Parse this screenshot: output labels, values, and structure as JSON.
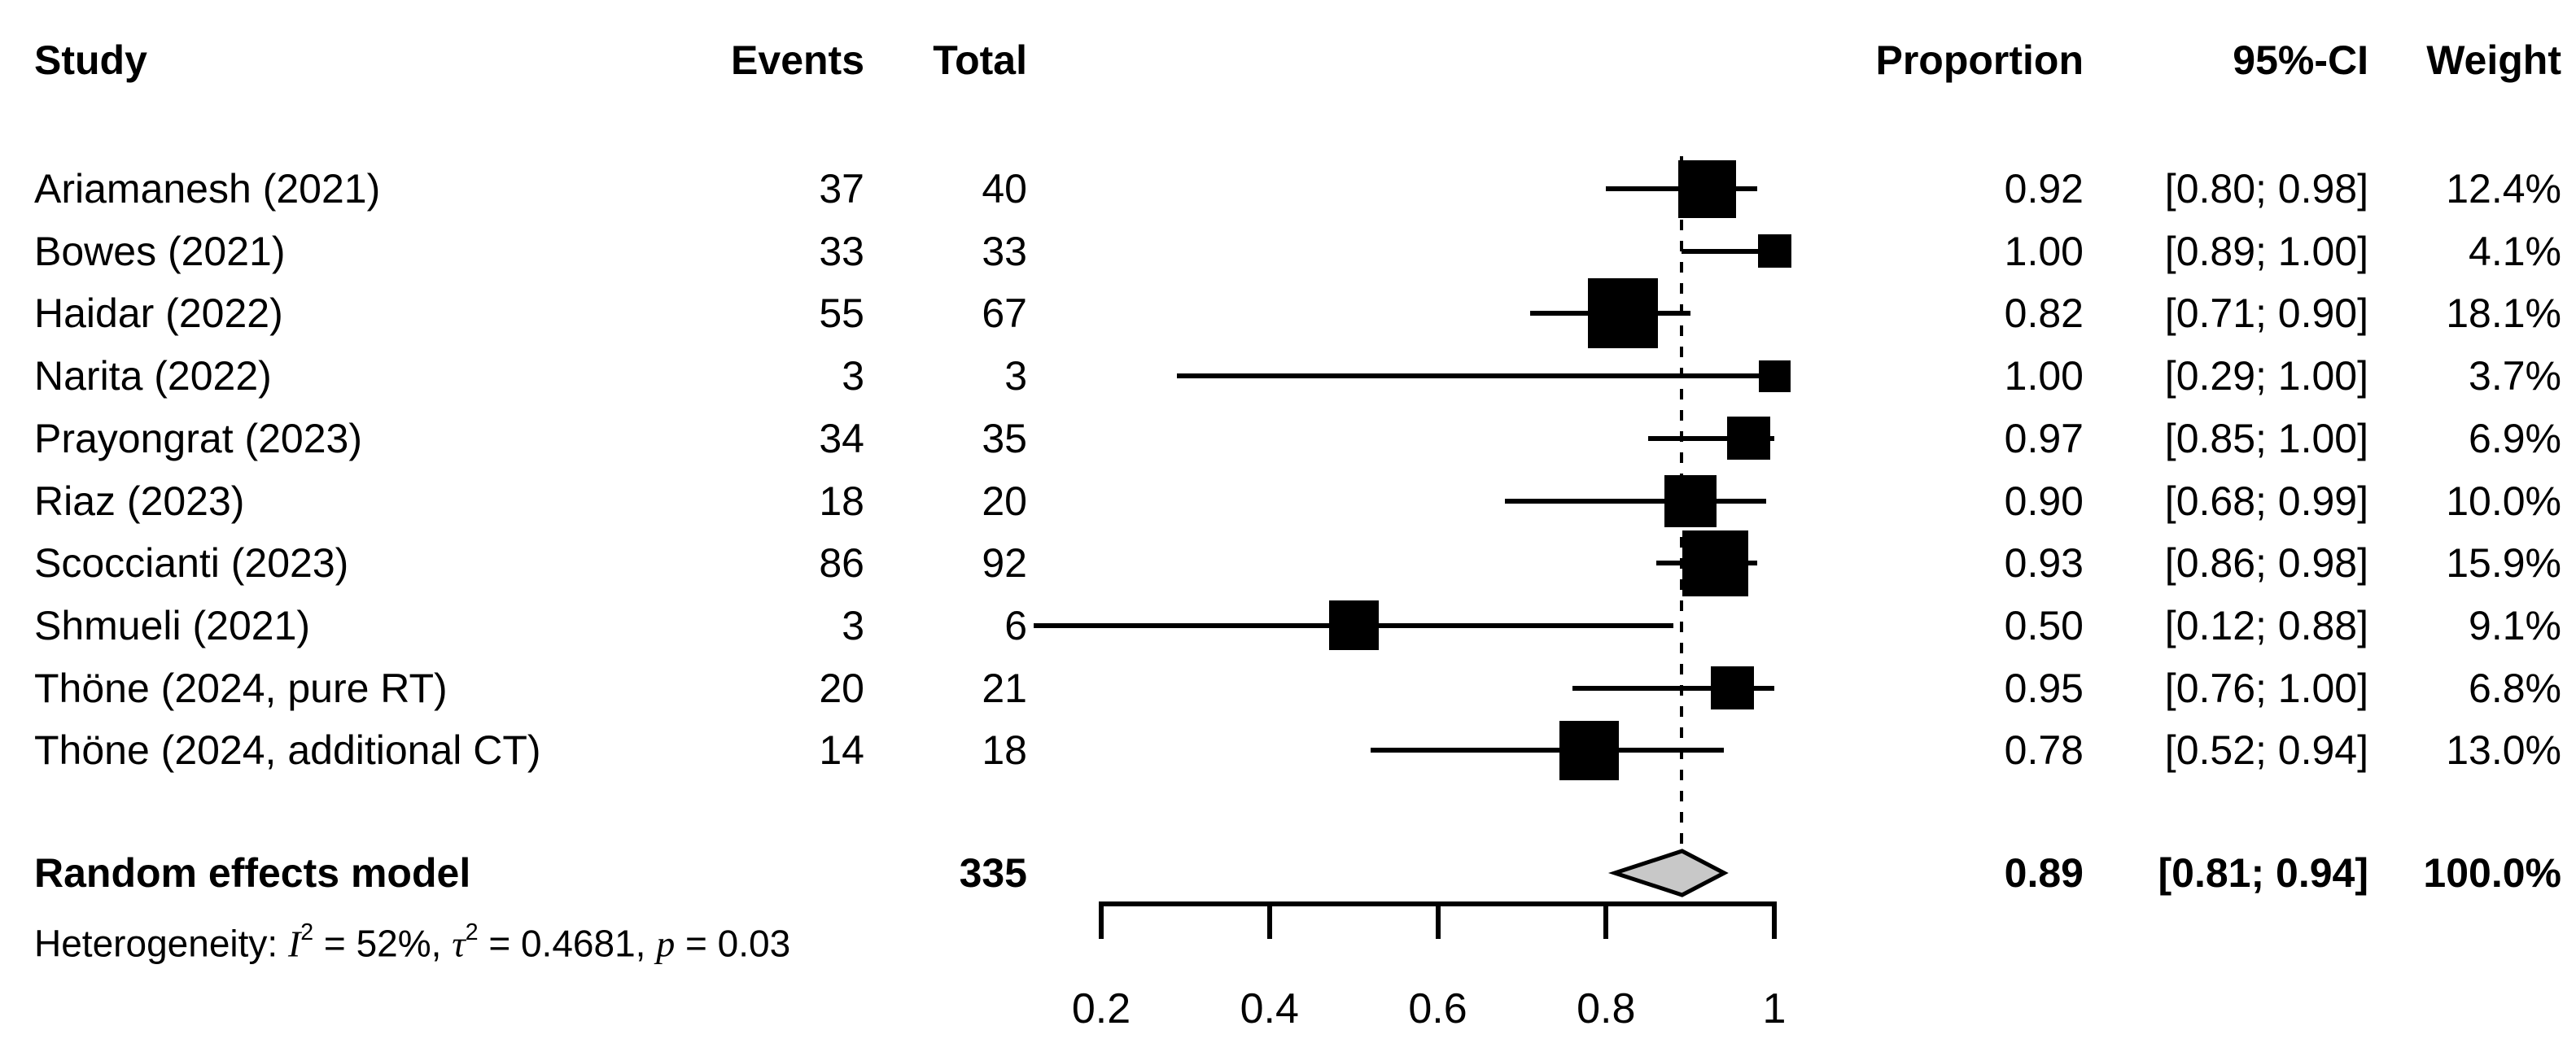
{
  "colors": {
    "text": "#000000",
    "marker": "#000000",
    "diamond_fill": "#c8c8c8",
    "diamond_border": "#000000",
    "background": "#ffffff"
  },
  "header": {
    "study": "Study",
    "events": "Events",
    "total": "Total",
    "proportion": "Proportion",
    "ci": "95%-CI",
    "weight": "Weight"
  },
  "chart_data": {
    "type": "forest",
    "x_axis": {
      "min": 0.2,
      "max": 1.0,
      "ticks": [
        0.2,
        0.4,
        0.6,
        0.8,
        1
      ],
      "tick_labels": [
        "0.2",
        "0.4",
        "0.6",
        "0.8",
        "1"
      ],
      "grid": false
    },
    "reference_line": 0.89,
    "studies": [
      {
        "name": "Ariamanesh (2021)",
        "events": "37",
        "total": "40",
        "proportion": "0.92",
        "ci": "[0.80; 0.98]",
        "weight": "12.4%",
        "est": 0.92,
        "lo": 0.8,
        "hi": 0.98,
        "weight_pct": 12.4
      },
      {
        "name": "Bowes (2021)",
        "events": "33",
        "total": "33",
        "proportion": "1.00",
        "ci": "[0.89; 1.00]",
        "weight": "4.1%",
        "est": 1.0,
        "lo": 0.89,
        "hi": 1.0,
        "weight_pct": 4.1
      },
      {
        "name": "Haidar (2022)",
        "events": "55",
        "total": "67",
        "proportion": "0.82",
        "ci": "[0.71; 0.90]",
        "weight": "18.1%",
        "est": 0.82,
        "lo": 0.71,
        "hi": 0.9,
        "weight_pct": 18.1
      },
      {
        "name": "Narita (2022)",
        "events": "3",
        "total": "3",
        "proportion": "1.00",
        "ci": "[0.29; 1.00]",
        "weight": "3.7%",
        "est": 1.0,
        "lo": 0.29,
        "hi": 1.0,
        "weight_pct": 3.7
      },
      {
        "name": "Prayongrat (2023)",
        "events": "34",
        "total": "35",
        "proportion": "0.97",
        "ci": "[0.85; 1.00]",
        "weight": "6.9%",
        "est": 0.97,
        "lo": 0.85,
        "hi": 1.0,
        "weight_pct": 6.9
      },
      {
        "name": "Riaz (2023)",
        "events": "18",
        "total": "20",
        "proportion": "0.90",
        "ci": "[0.68; 0.99]",
        "weight": "10.0%",
        "est": 0.9,
        "lo": 0.68,
        "hi": 0.99,
        "weight_pct": 10.0
      },
      {
        "name": "Scoccianti (2023)",
        "events": "86",
        "total": "92",
        "proportion": "0.93",
        "ci": "[0.86; 0.98]",
        "weight": "15.9%",
        "est": 0.93,
        "lo": 0.86,
        "hi": 0.98,
        "weight_pct": 15.9
      },
      {
        "name": "Shmueli (2021)",
        "events": "3",
        "total": "6",
        "proportion": "0.50",
        "ci": "[0.12; 0.88]",
        "weight": "9.1%",
        "est": 0.5,
        "lo": 0.12,
        "hi": 0.88,
        "weight_pct": 9.1
      },
      {
        "name": "Thöne (2024, pure RT)",
        "events": "20",
        "total": "21",
        "proportion": "0.95",
        "ci": "[0.76; 1.00]",
        "weight": "6.8%",
        "est": 0.95,
        "lo": 0.76,
        "hi": 1.0,
        "weight_pct": 6.8
      },
      {
        "name": "Thöne (2024, additional CT)",
        "events": "14",
        "total": "18",
        "proportion": "0.78",
        "ci": "[0.52; 0.94]",
        "weight": "13.0%",
        "est": 0.78,
        "lo": 0.52,
        "hi": 0.94,
        "weight_pct": 13.0
      }
    ],
    "summary": {
      "name": "Random effects model",
      "total": "335",
      "proportion": "0.89",
      "ci": "[0.81; 0.94]",
      "weight": "100.0%",
      "est": 0.89,
      "lo": 0.81,
      "hi": 0.94
    },
    "heterogeneity": {
      "label": "Heterogeneity: ",
      "i2_symbol": "I",
      "i2_sup": "2",
      "i2_rest": " = 52%, ",
      "tau_symbol": "τ",
      "tau_sup": "2",
      "tau_rest": " = 0.4681, ",
      "p_symbol": "p",
      "p_rest": " = 0.03"
    }
  }
}
